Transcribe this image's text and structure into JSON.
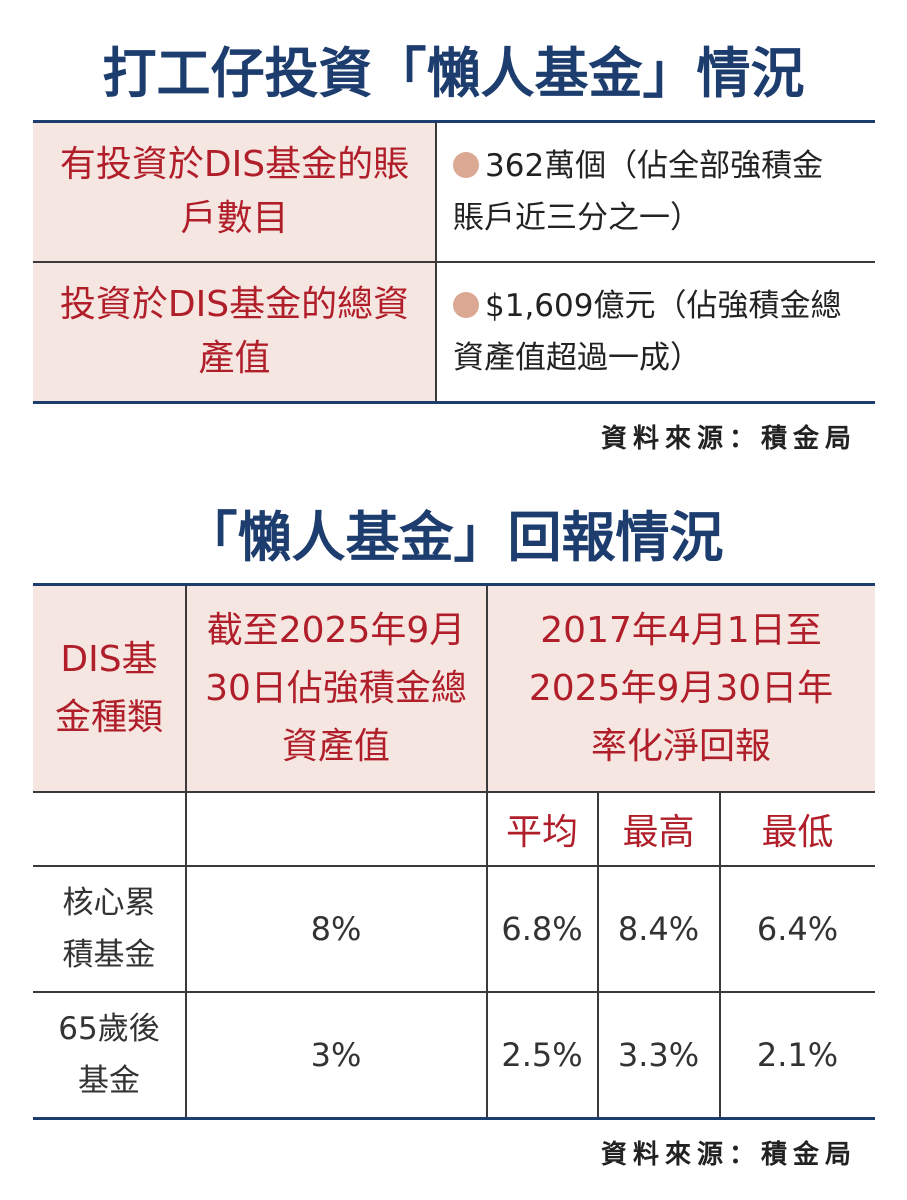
{
  "table1": {
    "title": "打工仔投資「懶人基金」情況",
    "rows": [
      {
        "label": "有投資於DIS基金的賬戶數目",
        "value": "362萬個（佔全部強積金賬戶近三分之一）"
      },
      {
        "label": "投資於DIS基金的總資產值",
        "value": "$1,609億元（佔強積金總資產值超過一成）"
      }
    ],
    "source": "資料來源：積金局",
    "colors": {
      "title": "#1d3d6e",
      "label": "#b01e2a",
      "shade": "#f6e6e1",
      "bullet": "#dba893"
    }
  },
  "table2": {
    "title": "「懶人基金」回報情況",
    "headers": {
      "type": "DIS基金種類",
      "asset": "截至2025年9月30日佔強積金總資產值",
      "return": "2017年4月1日至2025年9月30日年率化淨回報"
    },
    "subheaders": [
      "平均",
      "最高",
      "最低"
    ],
    "rows": [
      {
        "name": "核心累積基金",
        "asset": "8%",
        "avg": "6.8%",
        "high": "8.4%",
        "low": "6.4%"
      },
      {
        "name": "65歲後基金",
        "asset": "3%",
        "avg": "2.5%",
        "high": "3.3%",
        "low": "2.1%"
      }
    ],
    "source": "資料來源：積金局"
  }
}
